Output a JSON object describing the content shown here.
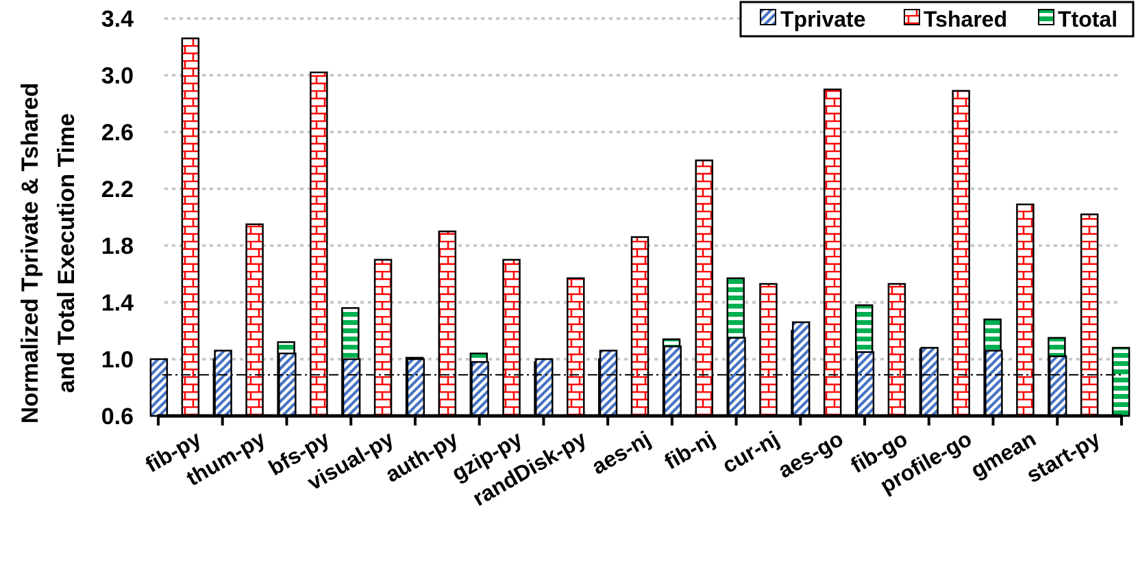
{
  "chart_data": {
    "type": "bar",
    "ylabel": [
      "Normalized Tprivate & Tshared",
      "and Total Execution Time"
    ],
    "ylim": [
      0.6,
      3.4
    ],
    "yticks": [
      "0.6",
      "1.0",
      "1.4",
      "1.8",
      "2.2",
      "2.6",
      "3.0",
      "3.4"
    ],
    "reference_line": 0.89,
    "grid": true,
    "legend_position": "top-right",
    "categories": [
      "fib-py",
      "thum-py",
      "bfs-py",
      "visual-py",
      "auth-py",
      "gzip-py",
      "randDisk-py",
      "aes-nj",
      "fib-nj",
      "cur-nj",
      "aes-go",
      "fib-go",
      "profile-go",
      "gmean",
      "start-py"
    ],
    "series": [
      {
        "name": "Tprivate",
        "color": "#4472C4",
        "pattern": "diagonal",
        "values": [
          1.0,
          1.06,
          1.04,
          1.0,
          1.0,
          0.98,
          1.0,
          1.06,
          1.09,
          1.15,
          1.26,
          1.05,
          1.08,
          1.06,
          1.02
        ]
      },
      {
        "name": "Tshared",
        "color": "#FF0000",
        "pattern": "brick",
        "values": [
          3.26,
          1.95,
          3.02,
          1.7,
          1.9,
          1.7,
          1.57,
          1.86,
          2.4,
          1.53,
          2.9,
          1.53,
          2.89,
          2.09,
          2.02
        ]
      },
      {
        "name": "Ttotal",
        "color": "#00B050",
        "pattern": "horizontal",
        "values": [
          1.0,
          1.12,
          1.36,
          1.01,
          1.04,
          0.98,
          1.0,
          1.14,
          1.57,
          1.2,
          1.38,
          1.07,
          1.28,
          1.15,
          1.08
        ]
      }
    ]
  }
}
